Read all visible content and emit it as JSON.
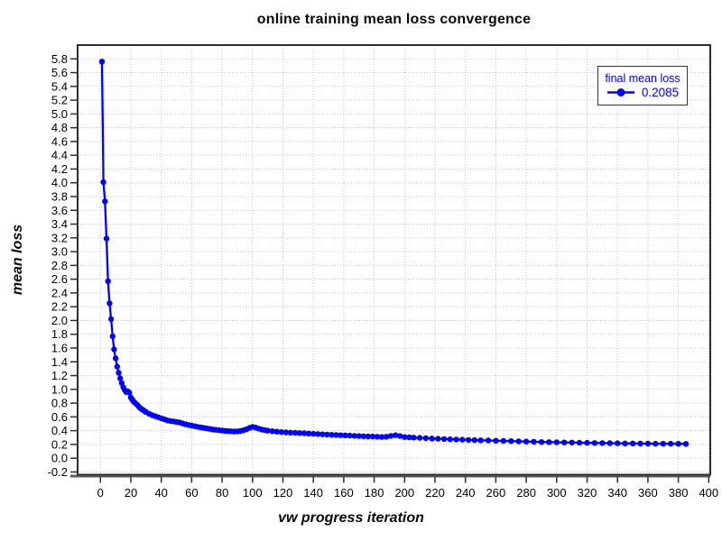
{
  "chart_data": {
    "type": "line",
    "title": "online training mean loss convergence",
    "xlabel": "vw progress iteration",
    "ylabel": "mean loss",
    "xlim": [
      -15,
      401
    ],
    "ylim": [
      -0.24,
      6.0
    ],
    "x_ticks": [
      0,
      20,
      40,
      60,
      80,
      100,
      120,
      140,
      160,
      180,
      200,
      220,
      240,
      260,
      280,
      300,
      320,
      340,
      360,
      380,
      400
    ],
    "y_ticks": [
      -0.2,
      0.0,
      0.2,
      0.4,
      0.6,
      0.8,
      1.0,
      1.2,
      1.4,
      1.6,
      1.8,
      2.0,
      2.2,
      2.4,
      2.6,
      2.8,
      3.0,
      3.2,
      3.4,
      3.6,
      3.8,
      4.0,
      4.2,
      4.4,
      4.6,
      4.8,
      5.0,
      5.2,
      5.4,
      5.6,
      5.8
    ],
    "grid": true,
    "legend": {
      "position": "top-right",
      "title": "final mean loss",
      "value_label": "0.2085"
    },
    "colors": {
      "series": "#0000ff",
      "grid": "#c8c8c8",
      "border": "#2e2e2e",
      "text": "#000000"
    },
    "series": [
      {
        "name": "final mean loss",
        "final_value": 0.2085,
        "points": [
          [
            1,
            5.76
          ],
          [
            2,
            4.01
          ],
          [
            3,
            3.73
          ],
          [
            4,
            3.19
          ],
          [
            5,
            2.57
          ],
          [
            6,
            2.25
          ],
          [
            7,
            2.02
          ],
          [
            8,
            1.77
          ],
          [
            9,
            1.58
          ],
          [
            10,
            1.45
          ],
          [
            11,
            1.33
          ],
          [
            12,
            1.24
          ],
          [
            13,
            1.16
          ],
          [
            14,
            1.09
          ],
          [
            15,
            1.03
          ],
          [
            16,
            0.99
          ],
          [
            17,
            0.96
          ],
          [
            18,
            0.97
          ],
          [
            19,
            0.95
          ],
          [
            20,
            0.88
          ],
          [
            21,
            0.85
          ],
          [
            22,
            0.82
          ],
          [
            23,
            0.8
          ],
          [
            24,
            0.78
          ],
          [
            25,
            0.755
          ],
          [
            26,
            0.73
          ],
          [
            27,
            0.715
          ],
          [
            28,
            0.7
          ],
          [
            29,
            0.685
          ],
          [
            30,
            0.67
          ],
          [
            32,
            0.645
          ],
          [
            34,
            0.625
          ],
          [
            36,
            0.61
          ],
          [
            38,
            0.595
          ],
          [
            40,
            0.58
          ],
          [
            42,
            0.565
          ],
          [
            44,
            0.55
          ],
          [
            46,
            0.54
          ],
          [
            48,
            0.535
          ],
          [
            50,
            0.528
          ],
          [
            52,
            0.52
          ],
          [
            54,
            0.505
          ],
          [
            56,
            0.493
          ],
          [
            58,
            0.483
          ],
          [
            60,
            0.474
          ],
          [
            62,
            0.465
          ],
          [
            64,
            0.455
          ],
          [
            66,
            0.447
          ],
          [
            68,
            0.44
          ],
          [
            70,
            0.432
          ],
          [
            72,
            0.425
          ],
          [
            74,
            0.418
          ],
          [
            76,
            0.412
          ],
          [
            78,
            0.407
          ],
          [
            80,
            0.402
          ],
          [
            82,
            0.398
          ],
          [
            84,
            0.394
          ],
          [
            86,
            0.391
          ],
          [
            88,
            0.389
          ],
          [
            90,
            0.39
          ],
          [
            92,
            0.395
          ],
          [
            94,
            0.405
          ],
          [
            96,
            0.42
          ],
          [
            98,
            0.44
          ],
          [
            100,
            0.455
          ],
          [
            102,
            0.445
          ],
          [
            104,
            0.43
          ],
          [
            106,
            0.418
          ],
          [
            108,
            0.408
          ],
          [
            110,
            0.4
          ],
          [
            113,
            0.393
          ],
          [
            116,
            0.386
          ],
          [
            119,
            0.38
          ],
          [
            122,
            0.376
          ],
          [
            125,
            0.372
          ],
          [
            128,
            0.369
          ],
          [
            131,
            0.366
          ],
          [
            134,
            0.362
          ],
          [
            137,
            0.358
          ],
          [
            140,
            0.354
          ],
          [
            143,
            0.35
          ],
          [
            146,
            0.347
          ],
          [
            149,
            0.344
          ],
          [
            152,
            0.34
          ],
          [
            155,
            0.337
          ],
          [
            158,
            0.334
          ],
          [
            161,
            0.331
          ],
          [
            164,
            0.328
          ],
          [
            167,
            0.325
          ],
          [
            170,
            0.322
          ],
          [
            173,
            0.319
          ],
          [
            176,
            0.317
          ],
          [
            179,
            0.315
          ],
          [
            182,
            0.312
          ],
          [
            185,
            0.309
          ],
          [
            188,
            0.312
          ],
          [
            191,
            0.325
          ],
          [
            194,
            0.334
          ],
          [
            197,
            0.322
          ],
          [
            200,
            0.308
          ],
          [
            203,
            0.303
          ],
          [
            206,
            0.3
          ],
          [
            210,
            0.296
          ],
          [
            214,
            0.292
          ],
          [
            218,
            0.287
          ],
          [
            222,
            0.283
          ],
          [
            226,
            0.279
          ],
          [
            230,
            0.275
          ],
          [
            234,
            0.272
          ],
          [
            238,
            0.269
          ],
          [
            242,
            0.266
          ],
          [
            246,
            0.263
          ],
          [
            250,
            0.26
          ],
          [
            255,
            0.257
          ],
          [
            260,
            0.254
          ],
          [
            265,
            0.251
          ],
          [
            270,
            0.248
          ],
          [
            275,
            0.245
          ],
          [
            280,
            0.242
          ],
          [
            285,
            0.239
          ],
          [
            290,
            0.236
          ],
          [
            295,
            0.234
          ],
          [
            300,
            0.232
          ],
          [
            305,
            0.229
          ],
          [
            310,
            0.227
          ],
          [
            315,
            0.225
          ],
          [
            320,
            0.223
          ],
          [
            325,
            0.221
          ],
          [
            330,
            0.22
          ],
          [
            335,
            0.218
          ],
          [
            340,
            0.217
          ],
          [
            345,
            0.215
          ],
          [
            350,
            0.214
          ],
          [
            355,
            0.213
          ],
          [
            360,
            0.212
          ],
          [
            365,
            0.211
          ],
          [
            370,
            0.21
          ],
          [
            375,
            0.21
          ],
          [
            380,
            0.209
          ],
          [
            385,
            0.2085
          ]
        ]
      }
    ]
  }
}
